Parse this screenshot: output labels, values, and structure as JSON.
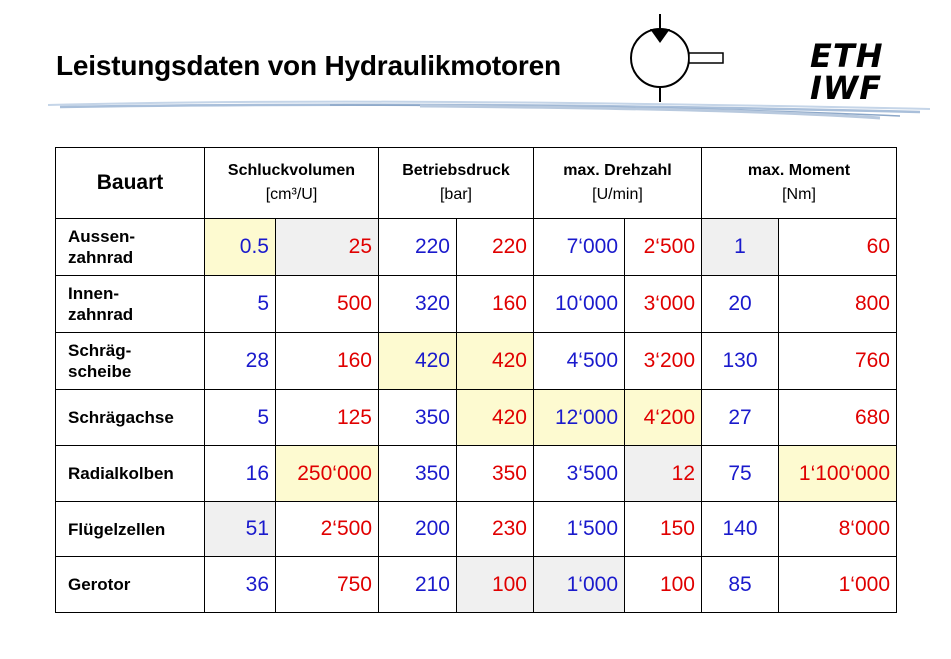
{
  "title": "Leistungsdaten von Hydraulikmotoren",
  "logo": {
    "line1": "ETH",
    "line2": "IWF"
  },
  "table": {
    "header": {
      "bauart": "Bauart",
      "groups": [
        {
          "name": "Schluckvolumen",
          "unit": "[cm³/U]"
        },
        {
          "name": "Betriebsdruck",
          "unit": "[bar]"
        },
        {
          "name": "max. Drehzahl",
          "unit": "[U/min]"
        },
        {
          "name": "max. Moment",
          "unit": "[Nm]"
        }
      ]
    },
    "rows": [
      {
        "label": "Aussen-\nzahnrad",
        "values": [
          "0.5",
          "25",
          "220",
          "220",
          "7‘000",
          "2‘500",
          "1",
          "60"
        ]
      },
      {
        "label": "Innen-\nzahnrad",
        "values": [
          "5",
          "500",
          "320",
          "160",
          "10‘000",
          "3‘000",
          "20",
          "800"
        ]
      },
      {
        "label": "Schräg-\nscheibe",
        "values": [
          "28",
          "160",
          "420",
          "420",
          "4‘500",
          "3‘200",
          "130",
          "760"
        ]
      },
      {
        "label": "Schrägachse",
        "values": [
          "5",
          "125",
          "350",
          "420",
          "12‘000",
          "4‘200",
          "27",
          "680"
        ]
      },
      {
        "label": "Radialkolben",
        "values": [
          "16",
          "250‘000",
          "350",
          "350",
          "3‘500",
          "12",
          "75",
          "1‘100‘000"
        ]
      },
      {
        "label": "Flügelzellen",
        "values": [
          "51",
          "2‘500",
          "200",
          "230",
          "1‘500",
          "150",
          "140",
          "8‘000"
        ]
      },
      {
        "label": "Gerotor",
        "values": [
          "36",
          "750",
          "210",
          "100",
          "1‘000",
          "100",
          "85",
          "1‘000"
        ]
      }
    ]
  },
  "colors": {
    "min_value": "#1a1acc",
    "max_value": "#e00000",
    "highlight_max": "#fdfad0",
    "highlight_min": "#f0f0f0"
  }
}
